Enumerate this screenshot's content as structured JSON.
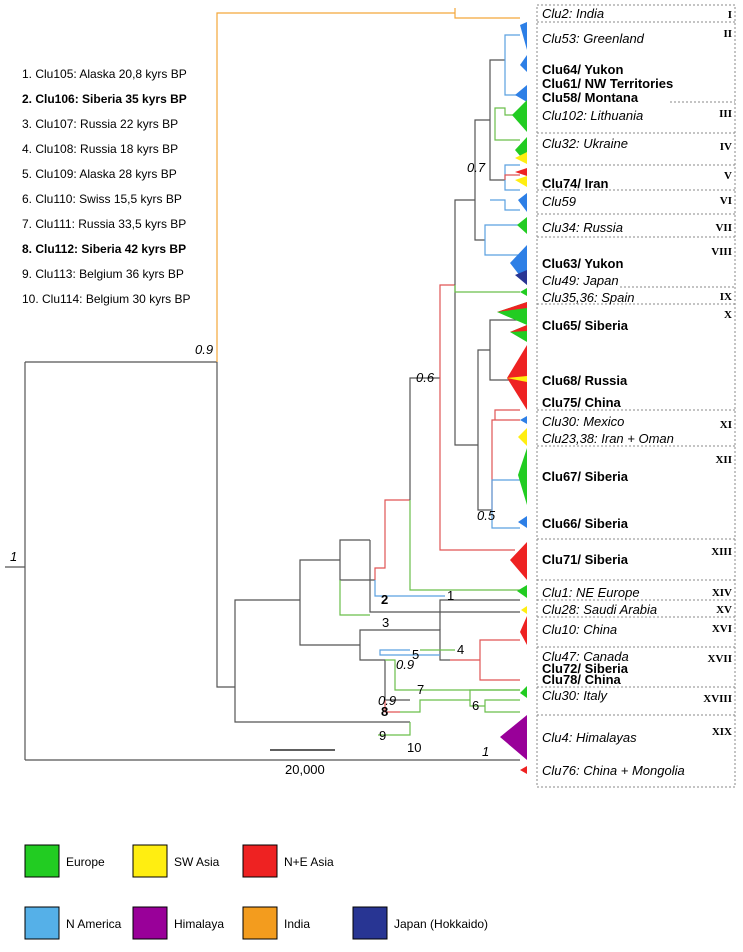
{
  "root_support": "1",
  "node_supports": [
    "0.9",
    "0.6",
    "0.7",
    "0.5",
    "0.9",
    "0.9",
    "1"
  ],
  "sample_list": [
    {
      "text": "1. Clu105: Alaska 20,8 kyrs BP",
      "bold": false
    },
    {
      "text": "2. Clu106: Siberia 35 kyrs BP",
      "bold": true
    },
    {
      "text": "3. Clu107: Russia 22 kyrs BP",
      "bold": false
    },
    {
      "text": "4. Clu108: Russia 18 kyrs BP",
      "bold": false
    },
    {
      "text": "5. Clu109: Alaska 28 kyrs BP",
      "bold": false
    },
    {
      "text": "6. Clu110: Swiss 15,5 kyrs BP",
      "bold": false
    },
    {
      "text": "7. Clu111: Russia 33,5 kyrs BP",
      "bold": false
    },
    {
      "text": "8. Clu112: Siberia 42 kyrs BP",
      "bold": true
    },
    {
      "text": "9. Clu113: Belgium 36 kyrs BP",
      "bold": false
    },
    {
      "text": "10. Clu114: Belgium 30 kyrs BP",
      "bold": false
    }
  ],
  "tip_numbers": [
    "1",
    "2",
    "3",
    "4",
    "5",
    "6",
    "7",
    "8",
    "9",
    "10"
  ],
  "clusters": [
    "Clu2: India",
    "Clu53: Greenland",
    "Clu64/ Yukon",
    "Clu61/ NW Territories",
    "Clu58/ Montana",
    "Clu102: Lithuania",
    "Clu32: Ukraine",
    "Clu74/ Iran",
    "Clu59",
    "Clu34: Russia",
    "Clu63/ Yukon",
    "Clu49: Japan",
    "Clu35,36: Spain",
    "Clu65/ Siberia",
    "Clu68/ Russia",
    "Clu75/ China",
    "Clu30: Mexico",
    "Clu23,38: Iran + Oman",
    "Clu67/ Siberia",
    "Clu66/ Siberia",
    "Clu71/ Siberia",
    "Clu1: NE Europe",
    "Clu28: Saudi Arabia",
    "Clu10: China",
    "Clu47: Canada",
    "Clu72/ Siberia",
    "Clu78/ China",
    "Clu30: Italy",
    "Clu4: Himalayas",
    "Clu76: China + Mongolia"
  ],
  "clades": [
    "I",
    "II",
    "III",
    "IV",
    "V",
    "VI",
    "VII",
    "VIII",
    "IX",
    "X",
    "XI",
    "XII",
    "XIII",
    "XIV",
    "XV",
    "XVI",
    "XVII",
    "XVIII",
    "XIX"
  ],
  "scale_bar": "20,000",
  "legend": [
    {
      "label": "Europe",
      "color": "#22cc22"
    },
    {
      "label": "SW Asia",
      "color": "#ffee11"
    },
    {
      "label": "N+E Asia",
      "color": "#ee2222"
    },
    {
      "label": "N America",
      "color": "#55b0e8"
    },
    {
      "label": "Himalaya",
      "color": "#990099"
    },
    {
      "label": "India",
      "color": "#f39c1e"
    },
    {
      "label": "Japan (Hokkaido)",
      "color": "#283593"
    }
  ]
}
